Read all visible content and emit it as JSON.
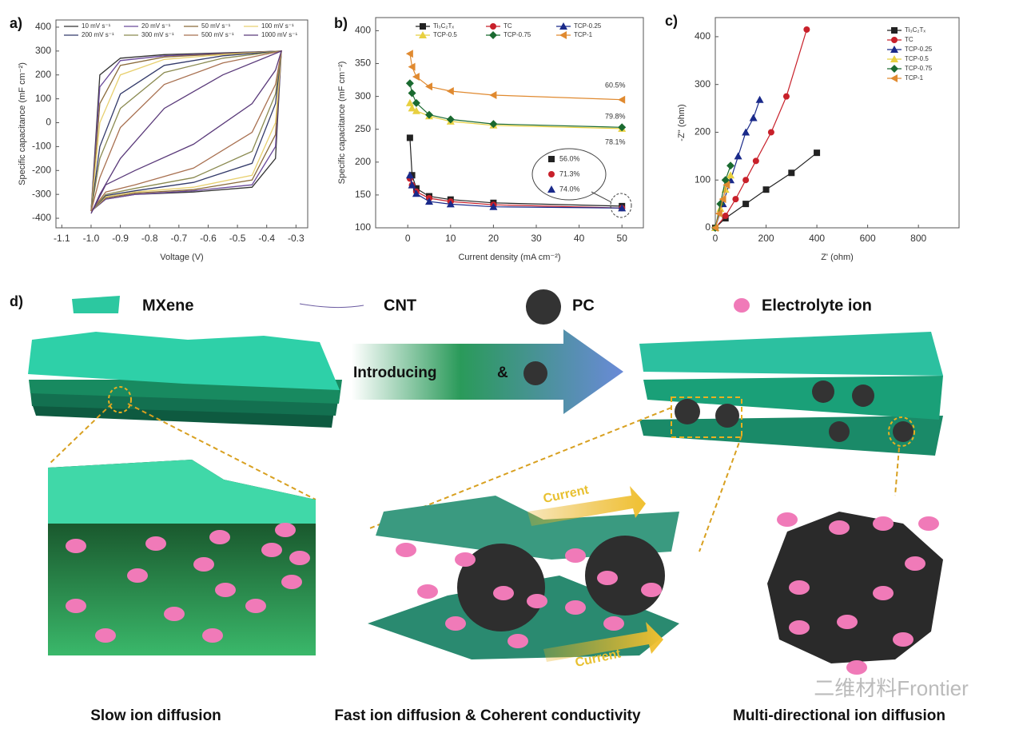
{
  "chart_data": [
    {
      "type": "line",
      "panel_label": "a)",
      "x_label": "Voltage (V)",
      "y_label": "Specific capacitance (mF cm⁻²)",
      "x": [
        -1,
        -0.97,
        -0.9,
        -0.75,
        -0.55,
        -0.35,
        -0.37,
        -0.45,
        -0.65,
        -0.85,
        -0.95,
        -1
      ],
      "series": [
        {
          "name": "10 mV s⁻¹",
          "color": "#333333",
          "values": [
            -370,
            200,
            270,
            285,
            292,
            300,
            -150,
            -270,
            -290,
            -300,
            -320,
            -370
          ]
        },
        {
          "name": "20 mV s⁻¹",
          "color": "#6b4a9a",
          "values": [
            -370,
            150,
            260,
            280,
            290,
            300,
            -100,
            -260,
            -285,
            -300,
            -320,
            -370
          ]
        },
        {
          "name": "50 mV s⁻¹",
          "color": "#8a6a3a",
          "values": [
            -370,
            80,
            240,
            275,
            288,
            300,
            -50,
            -240,
            -280,
            -295,
            -315,
            -370
          ]
        },
        {
          "name": "100 mV s⁻¹",
          "color": "#e8d070",
          "values": [
            -370,
            0,
            200,
            265,
            285,
            300,
            0,
            -220,
            -270,
            -290,
            -310,
            -370
          ]
        },
        {
          "name": "200 mV s⁻¹",
          "color": "#333a6a",
          "values": [
            -370,
            -100,
            120,
            240,
            280,
            300,
            80,
            -170,
            -250,
            -285,
            -305,
            -370
          ]
        },
        {
          "name": "300 mV s⁻¹",
          "color": "#8a8a50",
          "values": [
            -370,
            -150,
            60,
            210,
            270,
            300,
            120,
            -120,
            -230,
            -275,
            -300,
            -370
          ]
        },
        {
          "name": "500 mV s⁻¹",
          "color": "#a87050",
          "values": [
            -370,
            -230,
            -20,
            160,
            250,
            300,
            160,
            -40,
            -190,
            -260,
            -290,
            -370
          ]
        },
        {
          "name": "1000 mV s⁻¹",
          "color": "#5a3a7a",
          "values": [
            -380,
            -300,
            -150,
            60,
            200,
            300,
            220,
            80,
            -90,
            -200,
            -260,
            -380
          ]
        }
      ],
      "xlim": [
        -1.12,
        -0.26
      ],
      "xticks": [
        -1.1,
        {
          "value": -1,
          "label": "-1.0"
        },
        -0.9,
        -0.8,
        -0.7,
        -0.6,
        -0.5,
        -0.4,
        -0.3
      ],
      "ylim": [
        -440,
        430
      ],
      "yticks": [
        -400,
        -300,
        -200,
        -100,
        0,
        100,
        200,
        300,
        400
      ]
    },
    {
      "type": "line",
      "panel_label": "b)",
      "x_label": "Current density (mA cm⁻²)",
      "y_label": "Specific capacitance (mF cm⁻²)",
      "x": [
        0.5,
        1,
        2,
        5,
        10,
        20,
        50
      ],
      "series": [
        {
          "name": "Ti₃C₂Tₓ",
          "color": "#222222",
          "marker": "square",
          "values": [
            237,
            180,
            160,
            148,
            143,
            138,
            133
          ]
        },
        {
          "name": "TC",
          "color": "#c8202a",
          "marker": "circle",
          "values": [
            175,
            165,
            155,
            145,
            140,
            135,
            130
          ]
        },
        {
          "name": "TCP-0.25",
          "color": "#1a2a8a",
          "marker": "triangle",
          "values": [
            180,
            165,
            152,
            140,
            136,
            132,
            130
          ]
        },
        {
          "name": "TCP-0.5",
          "color": "#e8d040",
          "marker": "triangle",
          "values": [
            290,
            282,
            278,
            270,
            262,
            256,
            251
          ]
        },
        {
          "name": "TCP-0.75",
          "color": "#1a6a30",
          "marker": "diamond",
          "values": [
            320,
            305,
            290,
            272,
            265,
            258,
            253
          ]
        },
        {
          "name": "TCP-1",
          "color": "#e08a30",
          "marker": "triangle-left",
          "values": [
            365,
            345,
            330,
            315,
            308,
            302,
            295
          ]
        }
      ],
      "annotations": [
        "60.5%",
        "79.8%",
        "78.1%",
        "56.0%",
        "71.3%",
        "74.0%"
      ],
      "xlim": [
        -7.5,
        55
      ],
      "xticks": [
        0,
        10,
        20,
        30,
        40,
        50
      ],
      "ylim": [
        100,
        420
      ],
      "yticks": [
        100,
        150,
        200,
        250,
        300,
        350,
        400
      ]
    },
    {
      "type": "line",
      "panel_label": "c)",
      "x_label": "Z' (ohm)",
      "y_label": "-Z'' (ohm)",
      "series": [
        {
          "name": "Ti₃C₂Tₓ",
          "color": "#222222",
          "marker": "square",
          "x": [
            0,
            40,
            120,
            200,
            300,
            400
          ],
          "values": [
            0,
            20,
            50,
            80,
            115,
            157
          ]
        },
        {
          "name": "TC",
          "color": "#c8202a",
          "marker": "circle",
          "x": [
            0,
            40,
            80,
            120,
            160,
            220,
            280,
            360
          ],
          "values": [
            0,
            25,
            60,
            100,
            140,
            200,
            275,
            415
          ]
        },
        {
          "name": "TCP-0.25",
          "color": "#1a2a8a",
          "marker": "triangle",
          "x": [
            0,
            30,
            60,
            90,
            120,
            150,
            175
          ],
          "values": [
            0,
            50,
            100,
            150,
            200,
            230,
            268
          ]
        },
        {
          "name": "TCP-0.5",
          "color": "#e8d040",
          "marker": "triangle",
          "x": [
            0,
            20,
            40,
            60
          ],
          "values": [
            0,
            40,
            80,
            110
          ]
        },
        {
          "name": "TCP-0.75",
          "color": "#1a6a30",
          "marker": "diamond",
          "x": [
            0,
            20,
            40,
            60
          ],
          "values": [
            0,
            50,
            100,
            130
          ]
        },
        {
          "name": "TCP-1",
          "color": "#e08a30",
          "marker": "triangle-left",
          "x": [
            0,
            15,
            30,
            45
          ],
          "values": [
            0,
            30,
            60,
            90
          ]
        }
      ],
      "xlim": [
        0,
        960
      ],
      "xticks": [
        0,
        200,
        400,
        600,
        800
      ],
      "ylim": [
        0,
        440
      ],
      "yticks": [
        0,
        100,
        200,
        300,
        400
      ]
    }
  ],
  "schematic": {
    "panel_label": "d)",
    "legend": [
      "MXene",
      "CNT",
      "PC",
      "Electrolyte ion"
    ],
    "arrow_text": "Introducing",
    "arrow_amp": "&",
    "current": [
      "Current",
      "Current"
    ],
    "captions": [
      "Slow ion diffusion",
      "Fast ion diffusion & Coherent conductivity",
      "Multi-directional ion diffusion"
    ],
    "watermark": "二维材料Frontier"
  }
}
